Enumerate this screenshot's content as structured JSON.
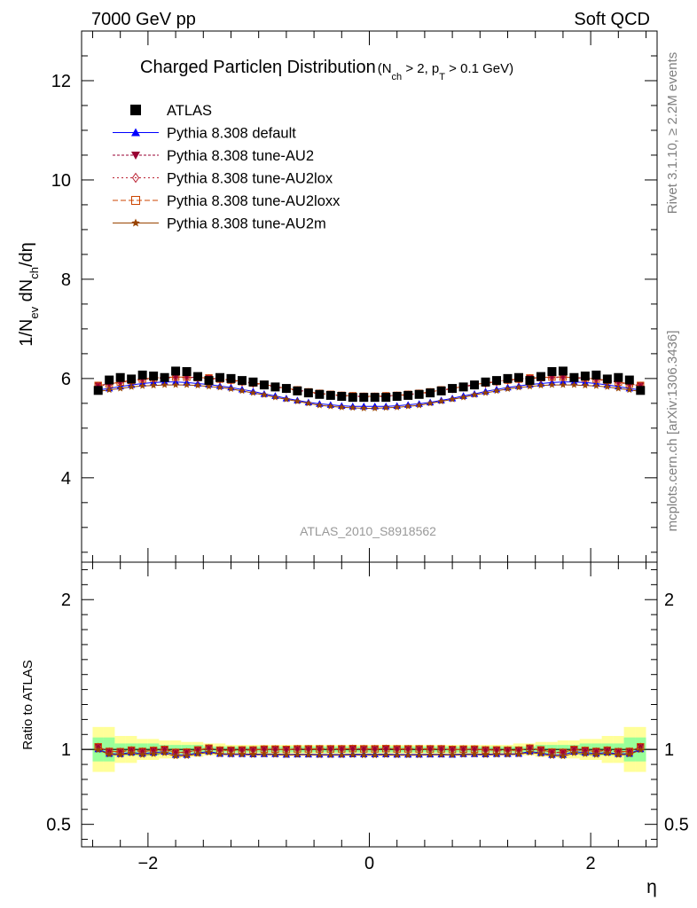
{
  "header": {
    "left": "7000 GeV pp",
    "right": "Soft QCD"
  },
  "side_labels": {
    "rivet_a": "Rivet 3.1.10, ",
    "rivet_b": "≥ 2.2M events",
    "mcplots": "mcplots.cern.ch [arXiv:1306.3436]"
  },
  "title": {
    "main_a": "Charged Particle",
    "main_eta": "η",
    "main_b": " Distribution",
    "sub_open": "(N",
    "sub_ch": "ch",
    "sub_mid": " > 2, p",
    "sub_T": "T",
    "sub_close": " > 0.1 GeV)"
  },
  "y_label": {
    "a": "1/N",
    "ev": "ev",
    "b": " dN",
    "ch": "ch",
    "c": "/dη"
  },
  "ratio_label": "Ratio to ATLAS",
  "x_label": "η",
  "watermark": "ATLAS_2010_S8918562",
  "legend": [
    {
      "label": "ATLAS",
      "color": "#000000",
      "marker": "square-filled",
      "dash": ""
    },
    {
      "label": "Pythia 8.308 default",
      "color": "#0000ff",
      "marker": "triangle-up-filled",
      "dash": ""
    },
    {
      "label": "Pythia 8.308 tune-AU2",
      "color": "#990033",
      "marker": "triangle-down-filled",
      "dash": "3,2"
    },
    {
      "label": "Pythia 8.308 tune-AU2lox",
      "color": "#bb2233",
      "marker": "diamond-open",
      "dash": "2,3"
    },
    {
      "label": "Pythia 8.308 tune-AU2loxx",
      "color": "#cc4400",
      "marker": "square-open",
      "dash": "6,3"
    },
    {
      "label": "Pythia 8.308 tune-AU2m",
      "color": "#994400",
      "marker": "star-filled",
      "dash": ""
    }
  ],
  "chart_data": {
    "type": "scatter",
    "x": [
      -2.45,
      -2.35,
      -2.25,
      -2.15,
      -2.05,
      -1.95,
      -1.85,
      -1.75,
      -1.65,
      -1.55,
      -1.45,
      -1.35,
      -1.25,
      -1.15,
      -1.05,
      -0.95,
      -0.85,
      -0.75,
      -0.65,
      -0.55,
      -0.45,
      -0.35,
      -0.25,
      -0.15,
      -0.05,
      0.05,
      0.15,
      0.25,
      0.35,
      0.45,
      0.55,
      0.65,
      0.75,
      0.85,
      0.95,
      1.05,
      1.15,
      1.25,
      1.35,
      1.45,
      1.55,
      1.65,
      1.75,
      1.85,
      1.95,
      2.05,
      2.15,
      2.25,
      2.35,
      2.45
    ],
    "xlim": [
      -2.6,
      2.6
    ],
    "ylim_main": [
      2.3,
      13
    ],
    "ylim_ratio": [
      0.35,
      2.25
    ],
    "y_ticks_main": [
      "4",
      "6",
      "8",
      "10",
      "12"
    ],
    "y_ticks_ratio": [
      "0.5",
      "1",
      "2"
    ],
    "x_ticks": [
      "−2",
      "0",
      "2"
    ],
    "atlas": [
      5.76,
      5.97,
      6.02,
      5.99,
      6.07,
      6.05,
      6.02,
      6.15,
      6.14,
      6.04,
      5.96,
      6.02,
      6.0,
      5.96,
      5.93,
      5.87,
      5.83,
      5.8,
      5.75,
      5.71,
      5.68,
      5.66,
      5.64,
      5.62,
      5.62,
      5.62,
      5.62,
      5.64,
      5.66,
      5.68,
      5.71,
      5.75,
      5.8,
      5.83,
      5.87,
      5.93,
      5.96,
      6.0,
      6.02,
      5.96,
      6.04,
      6.14,
      6.15,
      6.02,
      6.05,
      6.07,
      5.99,
      6.02,
      5.97,
      5.76
    ],
    "band_ratio_inner": [
      0.08,
      0.08,
      0.04,
      0.04,
      0.04,
      0.04,
      0.03,
      0.03,
      0.03,
      0.03,
      0.02,
      0.02,
      0.02,
      0.02,
      0.02,
      0.02,
      0.02,
      0.02,
      0.02,
      0.02,
      0.02,
      0.02,
      0.02,
      0.02,
      0.02,
      0.02,
      0.02,
      0.02,
      0.02,
      0.02,
      0.02,
      0.02,
      0.02,
      0.02,
      0.02,
      0.02,
      0.02,
      0.02,
      0.02,
      0.02,
      0.03,
      0.03,
      0.03,
      0.03,
      0.04,
      0.04,
      0.04,
      0.04,
      0.08,
      0.08
    ],
    "band_ratio_outer": [
      0.15,
      0.15,
      0.09,
      0.09,
      0.07,
      0.07,
      0.06,
      0.06,
      0.05,
      0.05,
      0.04,
      0.04,
      0.03,
      0.03,
      0.03,
      0.03,
      0.03,
      0.03,
      0.03,
      0.03,
      0.03,
      0.03,
      0.03,
      0.03,
      0.03,
      0.03,
      0.03,
      0.03,
      0.03,
      0.03,
      0.03,
      0.03,
      0.03,
      0.03,
      0.03,
      0.03,
      0.03,
      0.03,
      0.04,
      0.04,
      0.05,
      0.05,
      0.06,
      0.06,
      0.07,
      0.07,
      0.09,
      0.09,
      0.15,
      0.15
    ],
    "series": [
      {
        "name": "Pythia 8.308 default",
        "values": [
          5.77,
          5.8,
          5.84,
          5.87,
          5.9,
          5.92,
          5.93,
          5.93,
          5.92,
          5.9,
          5.88,
          5.85,
          5.82,
          5.78,
          5.74,
          5.69,
          5.65,
          5.6,
          5.56,
          5.52,
          5.49,
          5.47,
          5.45,
          5.44,
          5.44,
          5.44,
          5.44,
          5.45,
          5.47,
          5.49,
          5.52,
          5.56,
          5.6,
          5.65,
          5.69,
          5.74,
          5.78,
          5.82,
          5.85,
          5.88,
          5.9,
          5.92,
          5.93,
          5.93,
          5.92,
          5.9,
          5.87,
          5.84,
          5.8,
          5.77
        ]
      },
      {
        "name": "Pythia 8.308 tune-AU2",
        "values": [
          5.86,
          5.89,
          5.93,
          5.96,
          5.99,
          6.01,
          6.02,
          6.03,
          6.03,
          6.02,
          6.01,
          5.99,
          5.97,
          5.94,
          5.91,
          5.88,
          5.84,
          5.8,
          5.77,
          5.73,
          5.7,
          5.68,
          5.66,
          5.65,
          5.64,
          5.64,
          5.65,
          5.66,
          5.68,
          5.7,
          5.73,
          5.77,
          5.8,
          5.84,
          5.88,
          5.91,
          5.94,
          5.97,
          5.99,
          6.01,
          6.02,
          6.03,
          6.03,
          6.02,
          6.01,
          5.99,
          5.96,
          5.93,
          5.89,
          5.86
        ]
      },
      {
        "name": "Pythia 8.308 tune-AU2lox",
        "values": [
          5.85,
          5.88,
          5.92,
          5.95,
          5.98,
          6.0,
          6.01,
          6.02,
          6.02,
          6.01,
          6.0,
          5.98,
          5.96,
          5.93,
          5.9,
          5.87,
          5.83,
          5.79,
          5.76,
          5.72,
          5.69,
          5.67,
          5.65,
          5.64,
          5.63,
          5.63,
          5.64,
          5.65,
          5.67,
          5.69,
          5.72,
          5.76,
          5.79,
          5.83,
          5.87,
          5.9,
          5.93,
          5.96,
          5.98,
          6.0,
          6.01,
          6.02,
          6.02,
          6.01,
          6.0,
          5.98,
          5.95,
          5.92,
          5.88,
          5.85
        ]
      },
      {
        "name": "Pythia 8.308 tune-AU2loxx",
        "values": [
          5.86,
          5.89,
          5.93,
          5.96,
          5.99,
          6.01,
          6.02,
          6.03,
          6.03,
          6.02,
          6.01,
          5.99,
          5.97,
          5.94,
          5.91,
          5.88,
          5.84,
          5.8,
          5.77,
          5.73,
          5.7,
          5.68,
          5.66,
          5.65,
          5.64,
          5.64,
          5.65,
          5.66,
          5.68,
          5.7,
          5.73,
          5.77,
          5.8,
          5.84,
          5.88,
          5.91,
          5.94,
          5.97,
          5.99,
          6.01,
          6.02,
          6.03,
          6.03,
          6.02,
          6.01,
          5.99,
          5.96,
          5.93,
          5.89,
          5.86
        ]
      },
      {
        "name": "Pythia 8.308 tune-AU2m",
        "values": [
          5.74,
          5.77,
          5.8,
          5.83,
          5.85,
          5.86,
          5.87,
          5.87,
          5.87,
          5.86,
          5.84,
          5.82,
          5.79,
          5.75,
          5.71,
          5.67,
          5.62,
          5.58,
          5.54,
          5.5,
          5.46,
          5.44,
          5.42,
          5.41,
          5.4,
          5.4,
          5.41,
          5.42,
          5.44,
          5.46,
          5.5,
          5.54,
          5.58,
          5.62,
          5.67,
          5.71,
          5.75,
          5.79,
          5.82,
          5.84,
          5.86,
          5.87,
          5.87,
          5.87,
          5.86,
          5.85,
          5.83,
          5.8,
          5.77,
          5.74
        ]
      }
    ]
  }
}
